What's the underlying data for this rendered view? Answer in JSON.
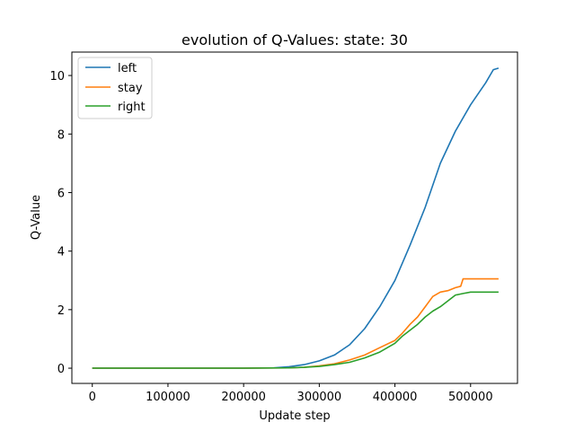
{
  "chart_data": {
    "type": "line",
    "title": "evolution of Q-Values: state: 30",
    "xlabel": "Update step",
    "ylabel": "Q-Value",
    "xlim": [
      -27000,
      562000
    ],
    "ylim": [
      -0.52,
      10.8
    ],
    "xticks": [
      0,
      100000,
      200000,
      300000,
      400000,
      500000
    ],
    "xtick_labels": [
      "0",
      "100000",
      "200000",
      "300000",
      "400000",
      "500000"
    ],
    "yticks": [
      0,
      2,
      4,
      6,
      8,
      10
    ],
    "ytick_labels": [
      "0",
      "2",
      "4",
      "6",
      "8",
      "10"
    ],
    "grid": false,
    "legend_position": "top-left",
    "series": [
      {
        "name": "left",
        "color": "#1f77b4",
        "x": [
          0,
          100000,
          200000,
          240000,
          260000,
          280000,
          300000,
          320000,
          340000,
          360000,
          380000,
          400000,
          420000,
          440000,
          460000,
          480000,
          500000,
          520000,
          530000,
          537000
        ],
        "y": [
          0,
          0,
          0,
          0.01,
          0.05,
          0.12,
          0.25,
          0.45,
          0.8,
          1.35,
          2.1,
          3.0,
          4.2,
          5.5,
          7.0,
          8.1,
          9.0,
          9.75,
          10.2,
          10.25
        ]
      },
      {
        "name": "stay",
        "color": "#ff7f0e",
        "x": [
          0,
          100000,
          200000,
          260000,
          280000,
          300000,
          320000,
          340000,
          360000,
          380000,
          400000,
          410000,
          420000,
          430000,
          440000,
          450000,
          460000,
          470000,
          480000,
          487000,
          490000,
          537000
        ],
        "y": [
          0,
          0,
          0,
          0.01,
          0.03,
          0.08,
          0.15,
          0.28,
          0.45,
          0.7,
          0.95,
          1.2,
          1.5,
          1.75,
          2.1,
          2.45,
          2.6,
          2.65,
          2.75,
          2.8,
          3.05,
          3.05
        ]
      },
      {
        "name": "right",
        "color": "#2ca02c",
        "x": [
          0,
          100000,
          200000,
          260000,
          280000,
          300000,
          320000,
          340000,
          360000,
          380000,
          400000,
          410000,
          420000,
          430000,
          440000,
          450000,
          460000,
          470000,
          480000,
          490000,
          500000,
          537000
        ],
        "y": [
          0,
          0,
          0,
          0.01,
          0.03,
          0.06,
          0.12,
          0.2,
          0.35,
          0.55,
          0.85,
          1.1,
          1.3,
          1.5,
          1.75,
          1.95,
          2.1,
          2.3,
          2.5,
          2.55,
          2.6,
          2.6
        ]
      }
    ]
  }
}
